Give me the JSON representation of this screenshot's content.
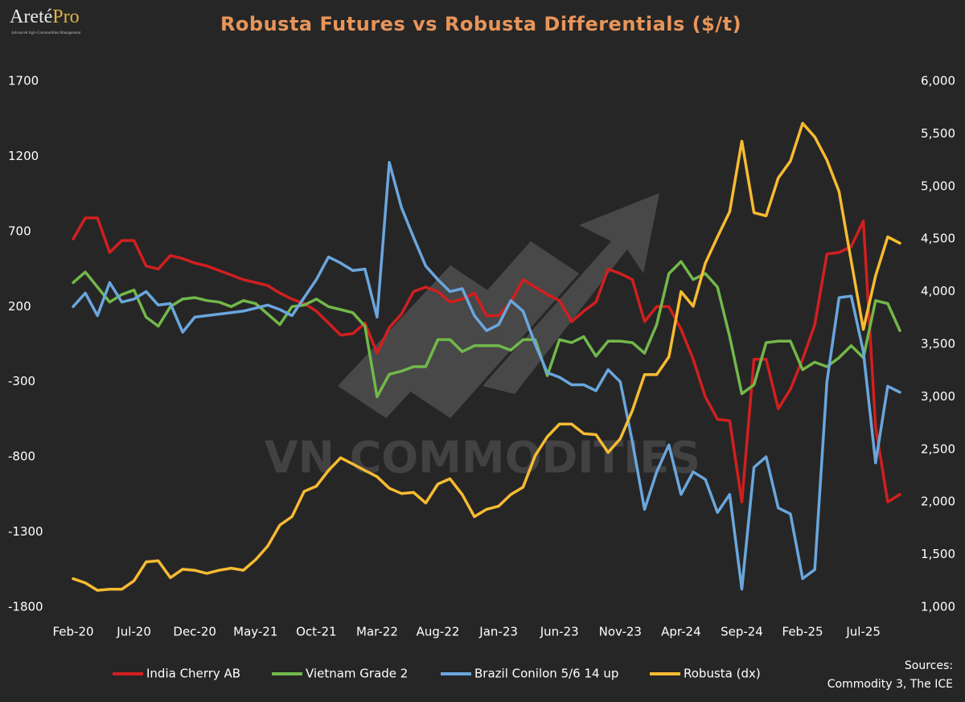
{
  "logo": {
    "text1": "Areté",
    "text2": "Pro",
    "tagline": "Advanced Agri-Commodities Management"
  },
  "watermark": "VN COMMODITIES",
  "sources": [
    "Sources:",
    "Commodity 3, The ICE"
  ],
  "chart_data": {
    "type": "line",
    "title": "Robusta Futures vs Robusta Differentials ($/t)",
    "categories": [
      "Feb-20",
      null,
      null,
      null,
      null,
      "Jul-20",
      null,
      null,
      null,
      null,
      "Dec-20",
      null,
      null,
      null,
      null,
      "May-21",
      null,
      null,
      null,
      null,
      "Oct-21",
      null,
      null,
      null,
      null,
      "Mar-22",
      null,
      null,
      null,
      null,
      "Aug-22",
      null,
      null,
      null,
      null,
      "Jan-23",
      null,
      null,
      null,
      null,
      "Jun-23",
      null,
      null,
      null,
      null,
      "Nov-23",
      null,
      null,
      null,
      null,
      "Apr-24",
      null,
      null,
      null,
      null,
      "Sep-24",
      null,
      null,
      null,
      null,
      "Feb-25",
      null,
      null,
      null,
      null,
      "Jul-25",
      null,
      null,
      null
    ],
    "ylim": [
      -1800,
      1700
    ],
    "yticks": [
      -1800,
      -1300,
      -800,
      -300,
      200,
      700,
      1200,
      1700
    ],
    "y2lim": [
      1000,
      6000
    ],
    "y2ticks": [
      {
        "value": 1000,
        "label": "1,000"
      },
      {
        "value": 1500,
        "label": "1,500"
      },
      {
        "value": 2000,
        "label": "2,000"
      },
      {
        "value": 2500,
        "label": "2,500"
      },
      {
        "value": 3000,
        "label": "3,000"
      },
      {
        "value": 3500,
        "label": "3,500"
      },
      {
        "value": 4000,
        "label": "4,000"
      },
      {
        "value": 4500,
        "label": "4,500"
      },
      {
        "value": 5000,
        "label": "5,000"
      },
      {
        "value": 5500,
        "label": "5,500"
      },
      {
        "value": 6000,
        "label": "6,000"
      }
    ],
    "grid": false,
    "legend": "bottom",
    "series": [
      {
        "name": "India Cherry AB",
        "color": "#d11f1f",
        "values": [
          650,
          790,
          790,
          560,
          640,
          640,
          470,
          450,
          540,
          520,
          490,
          470,
          440,
          410,
          380,
          360,
          340,
          290,
          250,
          220,
          170,
          90,
          10,
          20,
          90,
          -110,
          60,
          150,
          300,
          330,
          300,
          230,
          250,
          290,
          140,
          140,
          230,
          380,
          330,
          280,
          240,
          100,
          170,
          230,
          450,
          420,
          380,
          100,
          200,
          200,
          50,
          -150,
          -400,
          -550,
          -560,
          -1100,
          -150,
          -150,
          -480,
          -350,
          -150,
          80,
          550,
          560,
          600,
          770,
          -600,
          -1100,
          -1050
        ]
      },
      {
        "name": "Vietnam Grade 2",
        "color": "#72b84a",
        "values": [
          360,
          430,
          330,
          230,
          280,
          310,
          130,
          70,
          200,
          250,
          260,
          240,
          230,
          200,
          240,
          220,
          150,
          80,
          200,
          210,
          250,
          200,
          180,
          160,
          70,
          -400,
          -250,
          -230,
          -200,
          -200,
          -20,
          -20,
          -100,
          -60,
          -60,
          -60,
          -90,
          -20,
          -20,
          -260,
          -20,
          -40,
          0,
          -130,
          -30,
          -30,
          -40,
          -110,
          80,
          420,
          500,
          380,
          420,
          330,
          0,
          -380,
          -320,
          -40,
          -30,
          -30,
          -220,
          -170,
          -200,
          -140,
          -60,
          -140,
          240,
          220,
          40
        ]
      },
      {
        "name": "Brazil Conilon 5/6 14 up",
        "color": "#6aa6dd",
        "values": [
          200,
          290,
          140,
          360,
          230,
          250,
          300,
          210,
          220,
          30,
          130,
          140,
          150,
          160,
          170,
          190,
          210,
          180,
          140,
          260,
          380,
          530,
          490,
          440,
          450,
          130,
          1160,
          860,
          660,
          470,
          380,
          300,
          320,
          140,
          40,
          80,
          240,
          170,
          -50,
          -240,
          -270,
          -320,
          -320,
          -360,
          -220,
          -300,
          -700,
          -1150,
          -900,
          -720,
          -1050,
          -900,
          -950,
          -1170,
          -1050,
          -1680,
          -870,
          -800,
          -1140,
          -1180,
          -1610,
          -1550,
          -300,
          260,
          270,
          -100,
          -840,
          -330,
          -370
        ]
      },
      {
        "name": "Robusta (dx)",
        "color": "#f7bb32",
        "axis": "y2",
        "values": [
          1270,
          1230,
          1160,
          1170,
          1170,
          1250,
          1430,
          1440,
          1280,
          1360,
          1350,
          1320,
          1350,
          1370,
          1350,
          1450,
          1580,
          1780,
          1860,
          2100,
          2150,
          2300,
          2420,
          2360,
          2300,
          2240,
          2130,
          2080,
          2090,
          1990,
          2170,
          2220,
          2070,
          1860,
          1930,
          1960,
          2070,
          2140,
          2440,
          2620,
          2740,
          2740,
          2650,
          2640,
          2470,
          2600,
          2870,
          3210,
          3210,
          3380,
          4000,
          3860,
          4270,
          4520,
          4760,
          5430,
          4750,
          4720,
          5080,
          5240,
          5600,
          5470,
          5250,
          4950,
          4290,
          3640,
          4150,
          4520,
          4460
        ]
      }
    ]
  }
}
